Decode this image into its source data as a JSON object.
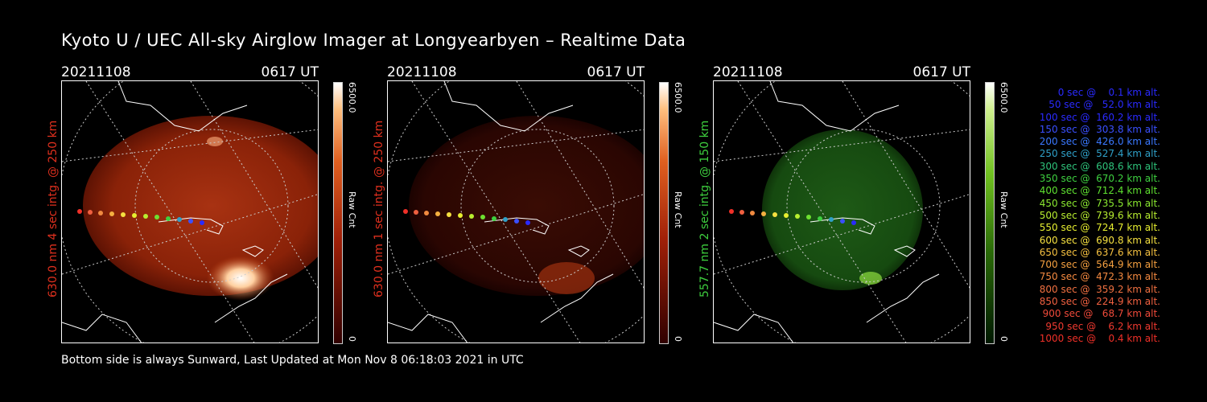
{
  "title": "Kyoto U / UEC All-sky Airglow Imager at Longyearbyen – Realtime Data",
  "footer": "Bottom side is always Sunward, Last Updated at Mon Nov  8 06:18:03 2021 in UTC",
  "panels": [
    {
      "date": "20211108",
      "time": "0617 UT",
      "ylabel": "630.0 nm 4 sec intg. @ 250 km",
      "label_color": "#e0301e",
      "cbar_max": "6500.0",
      "cbar_unit": "Raw Cnt",
      "cbar_min": "0",
      "channel": "red",
      "brightness": "high"
    },
    {
      "date": "20211108",
      "time": "0617 UT",
      "ylabel": "630.0 nm 1 sec intg. @ 250 km",
      "label_color": "#e0301e",
      "cbar_max": "6500.0",
      "cbar_unit": "Raw Cnt",
      "cbar_min": "0",
      "channel": "red",
      "brightness": "low"
    },
    {
      "date": "20211108",
      "time": "0617 UT",
      "ylabel": "557.7 nm 2 sec intg. @ 150 km",
      "label_color": "#3ecf3e",
      "cbar_max": "6500.0",
      "cbar_unit": "Raw Cnt",
      "cbar_min": "0",
      "channel": "green",
      "brightness": "medium"
    }
  ],
  "legend": [
    {
      "text": "0 sec @    0.1 km alt.",
      "color": "#2a2aff"
    },
    {
      "text": "50 sec @   52.0 km alt.",
      "color": "#2a2aff"
    },
    {
      "text": "100 sec @  160.2 km alt.",
      "color": "#2a2aff"
    },
    {
      "text": "150 sec @  303.8 km alt.",
      "color": "#3a50ff"
    },
    {
      "text": "200 sec @  426.0 km alt.",
      "color": "#3a78ff"
    },
    {
      "text": "250 sec @  527.4 km alt.",
      "color": "#2fa0c8"
    },
    {
      "text": "300 sec @  608.6 km alt.",
      "color": "#2ec27a"
    },
    {
      "text": "350 sec @  670.2 km alt.",
      "color": "#3ed040"
    },
    {
      "text": "400 sec @  712.4 km alt.",
      "color": "#5ee030"
    },
    {
      "text": "450 sec @  735.5 km alt.",
      "color": "#8ae830"
    },
    {
      "text": "500 sec @  739.6 km alt.",
      "color": "#b8ee30"
    },
    {
      "text": "550 sec @  724.7 km alt.",
      "color": "#e6ee30"
    },
    {
      "text": "600 sec @  690.8 km alt.",
      "color": "#f5e040"
    },
    {
      "text": "650 sec @  637.6 km alt.",
      "color": "#f5c040"
    },
    {
      "text": "700 sec @  564.9 km alt.",
      "color": "#f5a040"
    },
    {
      "text": "750 sec @  472.3 km alt.",
      "color": "#f58a40"
    },
    {
      "text": "800 sec @  359.2 km alt.",
      "color": "#f07040"
    },
    {
      "text": "850 sec @  224.9 km alt.",
      "color": "#f06040"
    },
    {
      "text": "900 sec @   68.7 km alt.",
      "color": "#f04a3a"
    },
    {
      "text": "950 sec @    6.2 km alt.",
      "color": "#f03a30"
    },
    {
      "text": "1000 sec @    0.4 km alt.",
      "color": "#f03028"
    }
  ]
}
